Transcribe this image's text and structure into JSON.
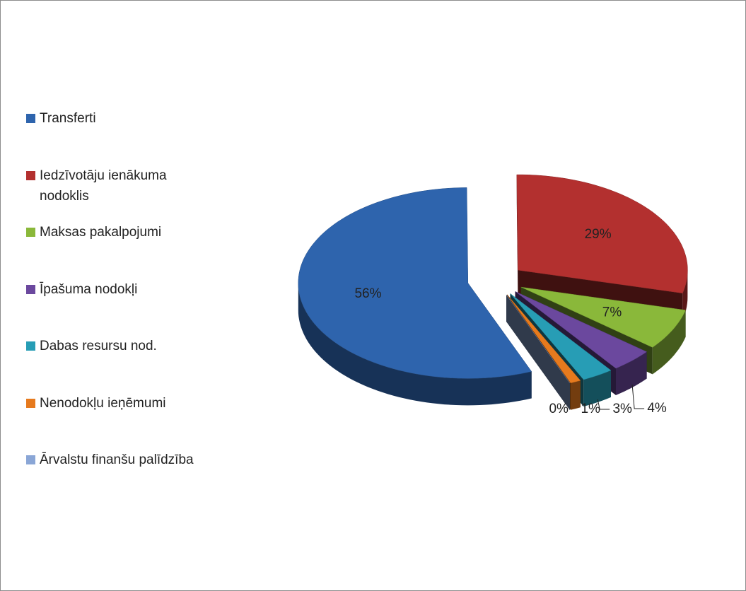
{
  "chart_data": {
    "type": "pie3d",
    "categories": [
      "Transferti",
      "Iedzīvotāju ienākuma nodoklis",
      "Maksas pakalpojumi",
      "Īpašuma nodokļi",
      "Dabas resursu nod.",
      "Nenodokļu ieņēmumi",
      "Ārvalstu finanšu palīdzība"
    ],
    "values": [
      56,
      29,
      7,
      4,
      3,
      1,
      0
    ],
    "value_labels": [
      "56%",
      "29%",
      "7%",
      "4%",
      "3%",
      "1%",
      "0%"
    ],
    "colors": [
      "#2e64ad",
      "#b3302f",
      "#8ab83a",
      "#6b489e",
      "#279db5",
      "#e67a1e",
      "#8aa6d6"
    ],
    "legend": "left"
  }
}
